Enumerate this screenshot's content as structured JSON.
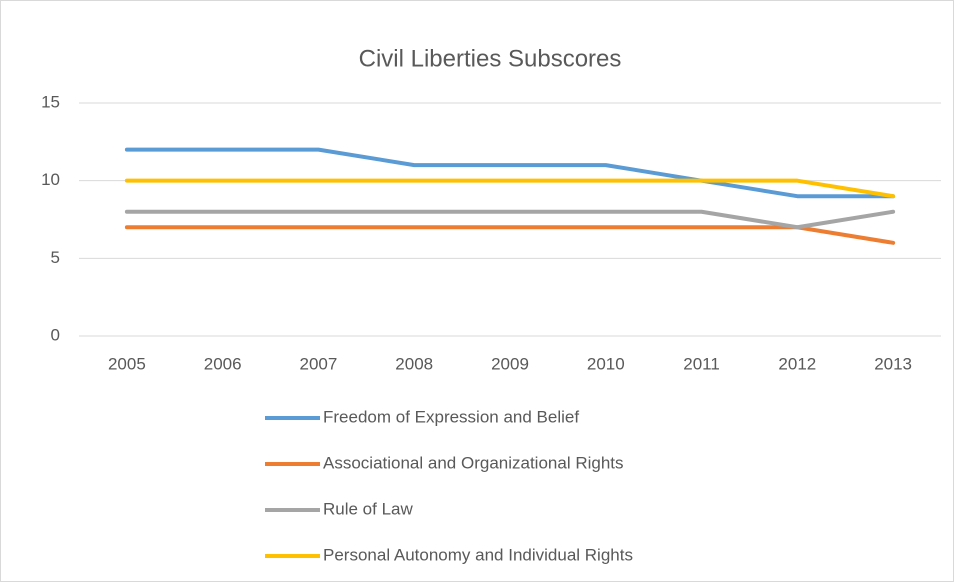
{
  "chart_data": {
    "type": "line",
    "title": "Civil Liberties Subscores",
    "categories": [
      "2005",
      "2006",
      "2007",
      "2008",
      "2009",
      "2010",
      "2011",
      "2012",
      "2013"
    ],
    "series": [
      {
        "name": "Freedom of Expression and Belief",
        "color": "#5b9bd5",
        "values": [
          12,
          12,
          12,
          11,
          11,
          11,
          10,
          9,
          9
        ]
      },
      {
        "name": "Associational and Organizational Rights",
        "color": "#ed7d31",
        "values": [
          7,
          7,
          7,
          7,
          7,
          7,
          7,
          7,
          6
        ]
      },
      {
        "name": "Rule of Law",
        "color": "#a5a5a5",
        "values": [
          8,
          8,
          8,
          8,
          8,
          8,
          8,
          7,
          8
        ]
      },
      {
        "name": "Personal Autonomy and Individual Rights",
        "color": "#ffc000",
        "values": [
          10,
          10,
          10,
          10,
          10,
          10,
          10,
          10,
          9
        ]
      }
    ],
    "ylim": [
      0,
      15
    ],
    "yticks": [
      0,
      5,
      10,
      15
    ],
    "grid": true,
    "legend": "bottom"
  }
}
